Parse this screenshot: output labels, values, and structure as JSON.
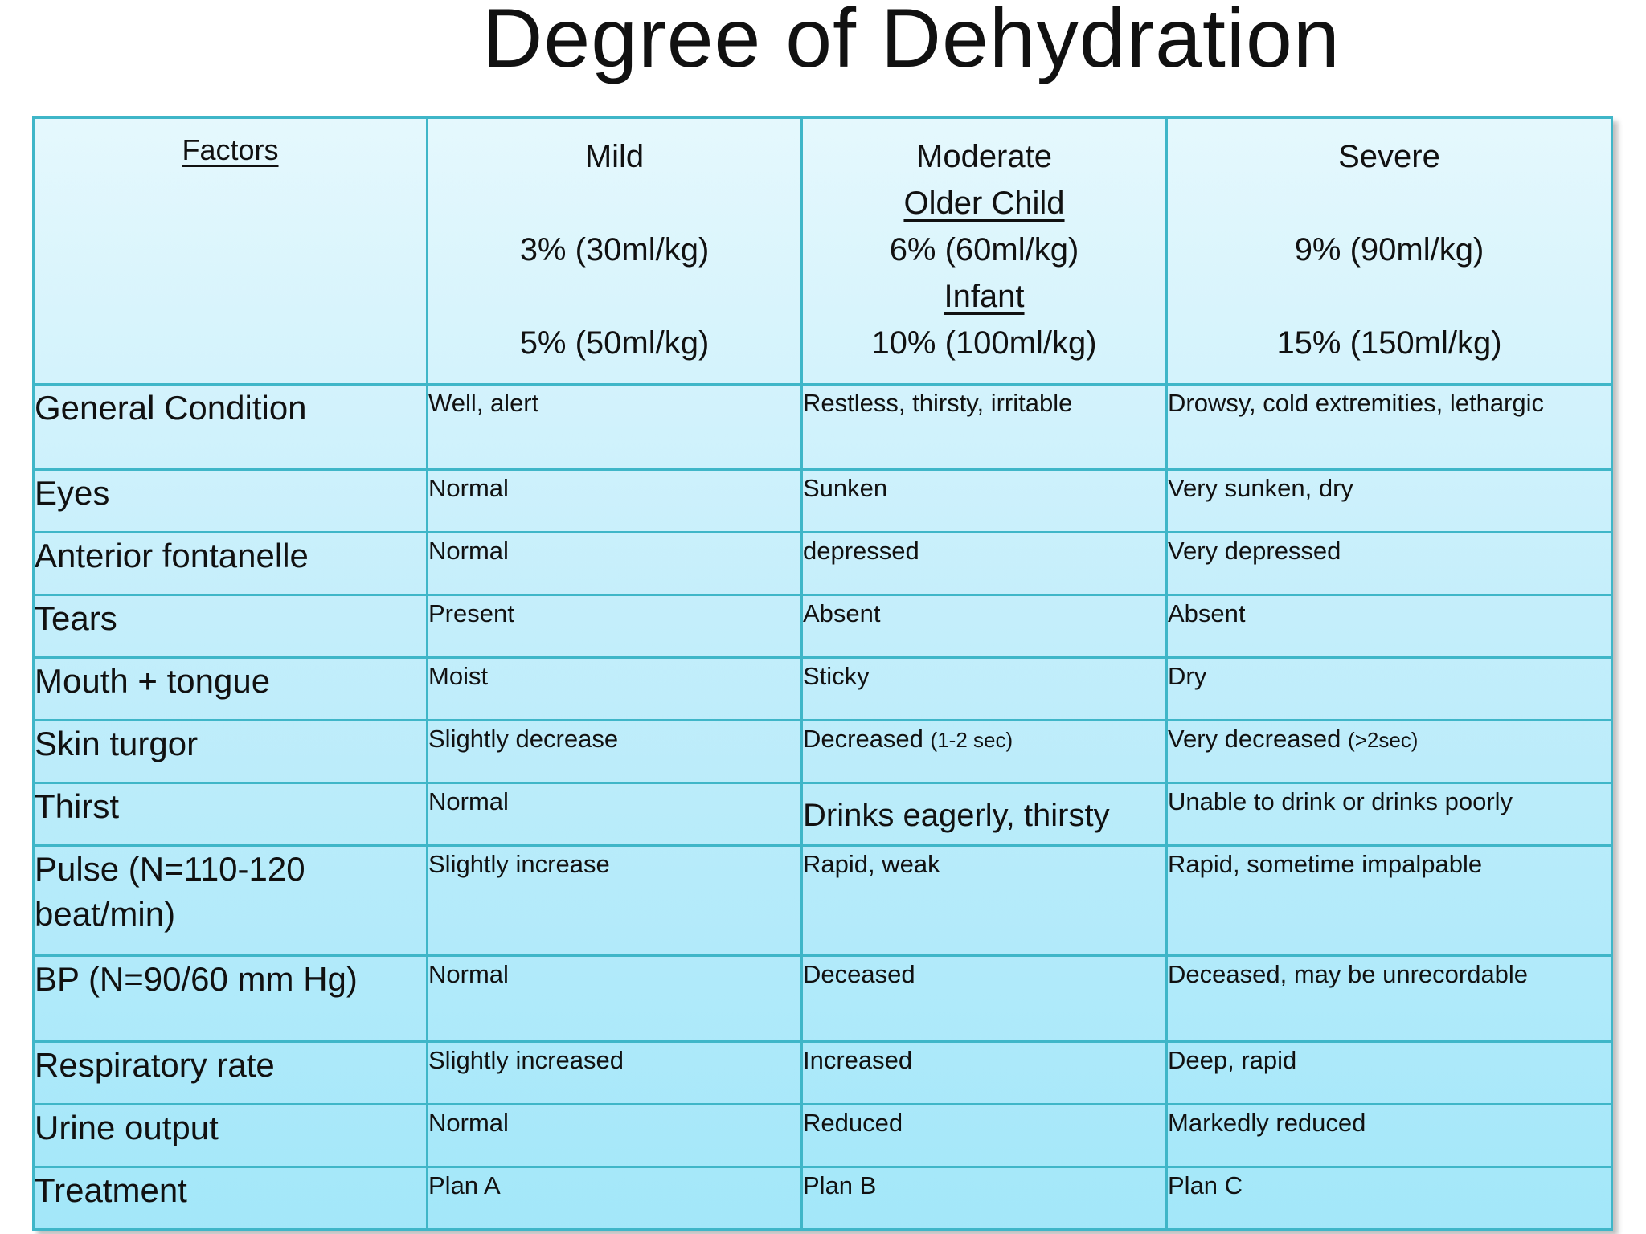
{
  "title": "Degree of Dehydration",
  "header": {
    "factors": "Factors",
    "mild": {
      "name": "Mild",
      "line1": "3% (30ml/kg)",
      "line2": "5% (50ml/kg)"
    },
    "moderate": {
      "name": "Moderate",
      "older_label": "Older Child",
      "line1": "6% (60ml/kg)",
      "infant_label": "Infant",
      "line2": "10% (100ml/kg)"
    },
    "severe": {
      "name": "Severe",
      "line1": "9% (90ml/kg)",
      "line2": "15% (150ml/kg)"
    }
  },
  "rows": [
    {
      "factor": "General Condition",
      "mild": "Well, alert",
      "moderate": "Restless, thirsty, irritable",
      "severe": "Drowsy, cold extremities, lethargic"
    },
    {
      "factor": "Eyes",
      "mild": "Normal",
      "moderate": "Sunken",
      "severe": "Very sunken, dry"
    },
    {
      "factor": "Anterior fontanelle",
      "mild": "Normal",
      "moderate": "depressed",
      "severe": "Very depressed"
    },
    {
      "factor": "Tears",
      "mild": "Present",
      "moderate": "Absent",
      "severe": "Absent"
    },
    {
      "factor": "Mouth + tongue",
      "mild": "Moist",
      "moderate": "Sticky",
      "severe": "Dry"
    },
    {
      "factor": "Skin turgor",
      "mild": "Slightly decrease",
      "moderate": "Decreased",
      "moderate_note": "(1-2 sec)",
      "severe": "Very decreased",
      "severe_note": "(>2sec)"
    },
    {
      "factor": "Thirst",
      "mild": "Normal",
      "moderate": "Drinks eagerly, thirsty",
      "severe": "Unable to drink or drinks poorly"
    },
    {
      "factor": "Pulse (N=110-120 beat/min)",
      "mild": "Slightly increase",
      "moderate": "Rapid, weak",
      "severe": "Rapid, sometime impalpable"
    },
    {
      "factor": "BP (N=90/60 mm Hg)",
      "mild": "Normal",
      "moderate": "Deceased",
      "severe": "Deceased, may be unrecordable"
    },
    {
      "factor": "Respiratory rate",
      "mild": "Slightly increased",
      "moderate": "Increased",
      "severe": "Deep, rapid"
    },
    {
      "factor": "Urine output",
      "mild": "Normal",
      "moderate": "Reduced",
      "severe": "Markedly reduced"
    },
    {
      "factor": "Treatment",
      "mild": "Plan A",
      "moderate": "Plan B",
      "severe": "Plan C"
    }
  ]
}
